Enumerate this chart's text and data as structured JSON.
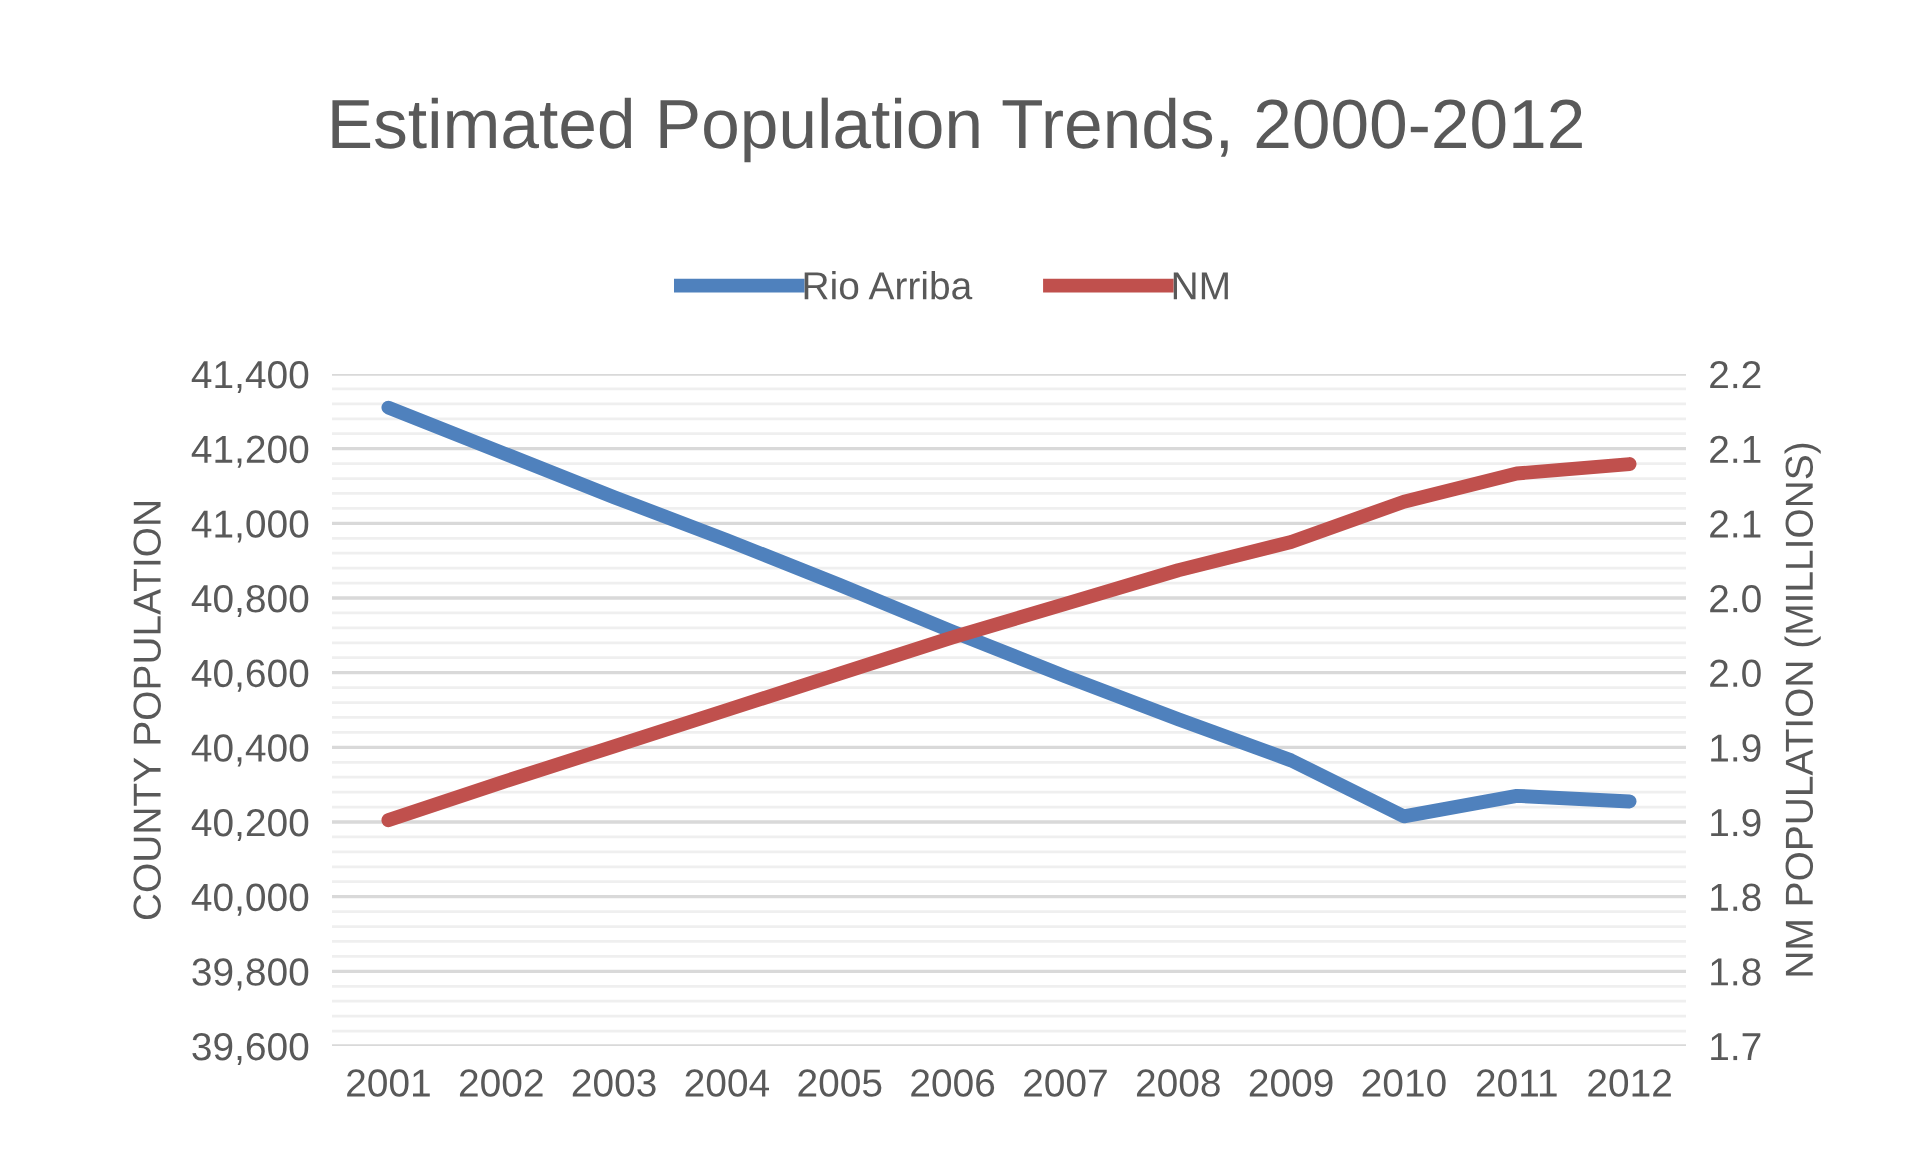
{
  "chart_data": {
    "type": "line",
    "title": "Estimated Population Trends, 2000-2012",
    "ylabel": "COUNTY POPULATION",
    "y2label": "NM POPULATION (MILLIONS)",
    "categories": [
      "2001",
      "2002",
      "2003",
      "2004",
      "2005",
      "2006",
      "2007",
      "2008",
      "2009",
      "2010",
      "2011",
      "2012"
    ],
    "series": [
      {
        "name": "Rio Arriba",
        "color": "#4f81bd",
        "values": [
          41310,
          41190,
          41070,
          40955,
          40835,
          40710,
          40590,
          40475,
          40365,
          40215,
          40270,
          40255
        ]
      },
      {
        "name": "NM",
        "color": "#c0504d",
        "axis": "y2",
        "values": [
          1.868,
          1.896,
          1.923,
          1.95,
          1.977,
          2.004,
          2.029,
          2.054,
          2.075,
          2.105,
          2.126,
          2.133
        ]
      }
    ],
    "ylim": [
      39600,
      41400
    ],
    "yticks": [
      {
        "value": 39600,
        "label": "39,600"
      },
      {
        "value": 39800,
        "label": "39,800"
      },
      {
        "value": 40000,
        "label": "40,000"
      },
      {
        "value": 40200,
        "label": "40,200"
      },
      {
        "value": 40400,
        "label": "40,400"
      },
      {
        "value": 40600,
        "label": "40,600"
      },
      {
        "value": 40800,
        "label": "40,800"
      },
      {
        "value": 41000,
        "label": "41,000"
      },
      {
        "value": 41200,
        "label": "41,200"
      },
      {
        "value": 41400,
        "label": "41,400"
      }
    ],
    "y2lim": [
      1.7,
      2.2
    ],
    "y2ticks": [
      {
        "value": 1.7,
        "label": "1.7"
      },
      {
        "value": 1.7556,
        "label": "1.8"
      },
      {
        "value": 1.8111,
        "label": "1.8"
      },
      {
        "value": 1.8667,
        "label": "1.9"
      },
      {
        "value": 1.9222,
        "label": "1.9"
      },
      {
        "value": 1.9778,
        "label": "2.0"
      },
      {
        "value": 2.0333,
        "label": "2.0"
      },
      {
        "value": 2.0889,
        "label": "2.1"
      },
      {
        "value": 2.1444,
        "label": "2.1"
      },
      {
        "value": 2.2,
        "label": "2.2"
      }
    ],
    "grid": "y",
    "legend": "top",
    "marker": "none",
    "line_style": "solid"
  }
}
